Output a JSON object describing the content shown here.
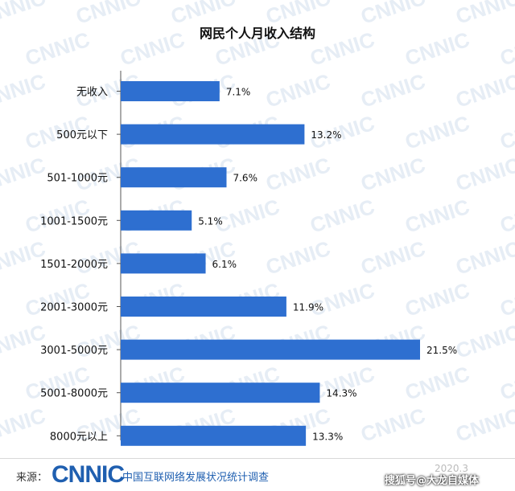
{
  "chart_data": {
    "type": "bar",
    "orientation": "horizontal",
    "title": "网民个人月收入结构",
    "categories": [
      "无收入",
      "500元以下",
      "501-1000元",
      "1001-1500元",
      "1501-2000元",
      "2001-3000元",
      "3001-5000元",
      "5001-8000元",
      "8000元以上"
    ],
    "values": [
      7.1,
      13.2,
      7.6,
      5.1,
      6.1,
      11.9,
      21.5,
      14.3,
      13.3
    ],
    "data_labels": [
      "7.1%",
      "13.2%",
      "7.6%",
      "5.1%",
      "6.1%",
      "11.9%",
      "21.5%",
      "14.3%",
      "13.3%"
    ],
    "xlim": [
      0,
      25
    ],
    "grid": false,
    "legend": "none",
    "bar_color": "#2e6fd0"
  },
  "watermark": "CNNIC",
  "footer": {
    "source_label": "来源：",
    "logo_text": "CNNIC",
    "org_text": "中国互联网络发展状况统计调查",
    "date_text": "2020.3",
    "credit_text": "搜狐号@大龙自媒体"
  },
  "colors": {
    "brand": "#1f5fb0",
    "bar": "#2e6fd0",
    "axis": "#555555"
  }
}
